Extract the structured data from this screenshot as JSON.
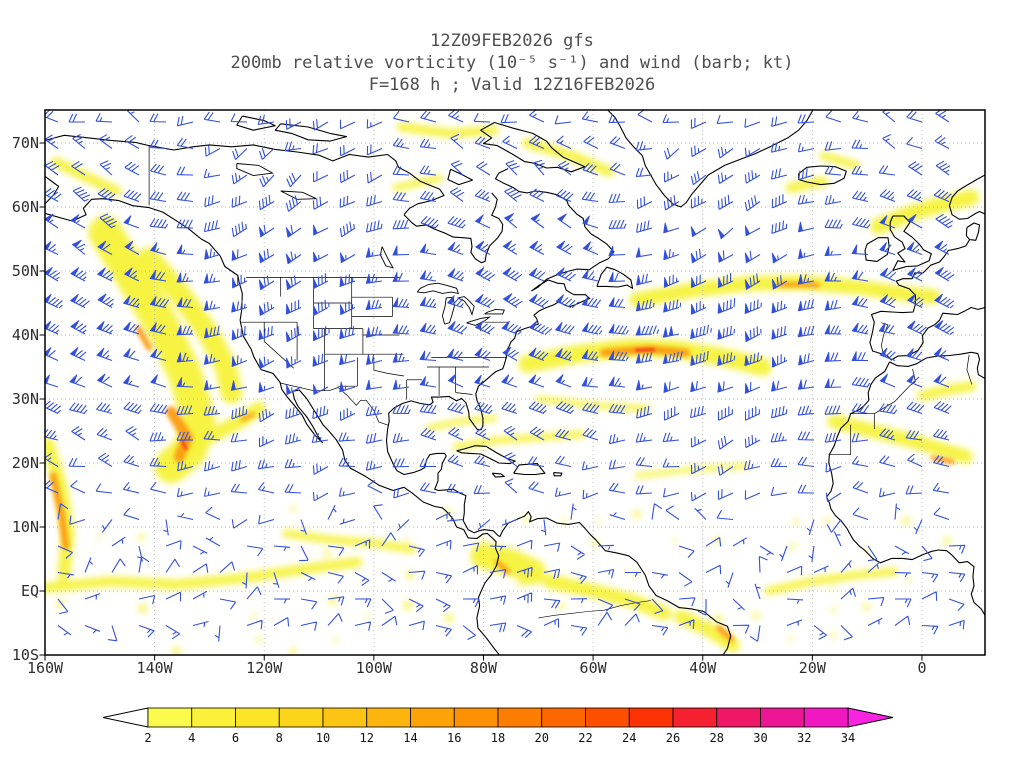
{
  "title": {
    "line1": "12Z09FEB2026 gfs",
    "line2": "200mb relative vorticity (10⁻⁵ s⁻¹) and wind (barb; kt)",
    "line3": "F=168 h ; Valid 12Z16FEB2026"
  },
  "axes": {
    "lat": [
      {
        "label": "70N",
        "value": 70
      },
      {
        "label": "60N",
        "value": 60
      },
      {
        "label": "50N",
        "value": 50
      },
      {
        "label": "40N",
        "value": 40
      },
      {
        "label": "30N",
        "value": 30
      },
      {
        "label": "20N",
        "value": 20
      },
      {
        "label": "10N",
        "value": 10
      },
      {
        "label": "EQ",
        "value": 0
      },
      {
        "label": "10S",
        "value": -10
      }
    ],
    "lon": [
      {
        "label": "160W",
        "value": -160
      },
      {
        "label": "140W",
        "value": -140
      },
      {
        "label": "120W",
        "value": -120
      },
      {
        "label": "100W",
        "value": -100
      },
      {
        "label": "80W",
        "value": -80
      },
      {
        "label": "60W",
        "value": -60
      },
      {
        "label": "40W",
        "value": -40
      },
      {
        "label": "20W",
        "value": -20
      },
      {
        "label": "0",
        "value": 0
      }
    ]
  },
  "colorbar": {
    "labels": [
      "2",
      "4",
      "6",
      "8",
      "10",
      "12",
      "14",
      "16",
      "18",
      "20",
      "22",
      "24",
      "26",
      "28",
      "30",
      "32",
      "34"
    ],
    "colors": [
      "#fbfb4d",
      "#fbf139",
      "#fce426",
      "#fcd51b",
      "#fdc513",
      "#fdb40d",
      "#fda307",
      "#fd9103",
      "#fd7d01",
      "#fd6700",
      "#fd4f00",
      "#fb3304",
      "#f52030",
      "#ef1866",
      "#ec1694",
      "#f118c1"
    ],
    "under": "#ffffff",
    "over": "#fa24e0"
  },
  "chart_data": {
    "type": "heatmap",
    "model": "gfs",
    "init_time": "12Z09FEB2026",
    "forecast_hour": "F=168 h",
    "valid_time": "12Z16FEB2026",
    "level": "200mb",
    "field": "relative vorticity",
    "field_units": "10⁻⁵ s⁻¹",
    "overlay": "wind (barb; kt)",
    "lon_axis": {
      "min": -160,
      "max": 11.5,
      "tick_interval_deg": 20
    },
    "lat_axis": {
      "min": -10,
      "max": 75,
      "tick_interval_deg": 10
    },
    "shading_levels": [
      2,
      4,
      6,
      8,
      10,
      12,
      14,
      16,
      18,
      20,
      22,
      24,
      26,
      28,
      30,
      32,
      34
    ],
    "palette": {
      "y": "#f5f23a",
      "o": "#fb9b12",
      "r": "#f8401a"
    },
    "barb_color": "#3350dd",
    "grid_color": "#b9b9b9",
    "vorticity_regions": [
      {
        "tier": "y",
        "w": 34,
        "pts": [
          [
            -149,
            56
          ],
          [
            -144,
            49
          ],
          [
            -139,
            42
          ],
          [
            -134.5,
            34
          ],
          [
            -132,
            27
          ],
          [
            -133.5,
            22
          ],
          [
            -137,
            19.5
          ]
        ]
      },
      {
        "tier": "y",
        "w": 22,
        "pts": [
          [
            -141,
            52
          ],
          [
            -135,
            46
          ],
          [
            -130,
            40
          ],
          [
            -127,
            35
          ],
          [
            -126,
            31
          ]
        ]
      },
      {
        "tier": "y",
        "w": 14,
        "pts": [
          [
            -134,
            22.5
          ],
          [
            -129,
            24.5
          ],
          [
            -124.5,
            26.5
          ],
          [
            -121,
            28.5
          ]
        ]
      },
      {
        "tier": "y",
        "w": 10,
        "pts": [
          [
            -158,
            67
          ],
          [
            -152,
            64.5
          ],
          [
            -147,
            62.5
          ]
        ]
      },
      {
        "tier": "y",
        "w": 13,
        "pts": [
          [
            -159.5,
            23
          ],
          [
            -157,
            16
          ],
          [
            -155.8,
            9
          ],
          [
            -156.5,
            3
          ]
        ]
      },
      {
        "tier": "y",
        "w": 10,
        "pts": [
          [
            -160,
            0.5
          ],
          [
            -148,
            1.5
          ],
          [
            -136,
            1
          ],
          [
            -124,
            2
          ],
          [
            -112,
            3.5
          ],
          [
            -103,
            4.5
          ]
        ]
      },
      {
        "tier": "y",
        "w": 8,
        "pts": [
          [
            -116,
            9
          ],
          [
            -108,
            8
          ],
          [
            -100,
            7.5
          ],
          [
            -93,
            6.5
          ]
        ]
      },
      {
        "tier": "y",
        "w": 26,
        "pts": [
          [
            -80,
            5.5
          ],
          [
            -75,
            4.5
          ],
          [
            -71,
            3
          ]
        ]
      },
      {
        "tier": "y",
        "w": 14,
        "pts": [
          [
            -68,
            1.5
          ],
          [
            -60,
            0
          ],
          [
            -53,
            -1.5
          ],
          [
            -47,
            -3.5
          ]
        ]
      },
      {
        "tier": "y",
        "w": 14,
        "pts": [
          [
            -44,
            -4
          ],
          [
            -39,
            -6
          ],
          [
            -34.5,
            -8.5
          ]
        ]
      },
      {
        "tier": "y",
        "w": 7,
        "pts": [
          [
            -85,
            22.5
          ],
          [
            -78,
            23.5
          ],
          [
            -70,
            24
          ],
          [
            -62,
            24.5
          ]
        ]
      },
      {
        "tier": "y",
        "w": 18,
        "pts": [
          [
            -72,
            35.5
          ],
          [
            -63,
            37
          ],
          [
            -54,
            38
          ],
          [
            -45,
            37.8
          ],
          [
            -36,
            36.5
          ],
          [
            -29,
            35
          ]
        ]
      },
      {
        "tier": "y",
        "w": 6,
        "pts": [
          [
            -70,
            30
          ],
          [
            -60,
            29
          ],
          [
            -50,
            28.5
          ]
        ]
      },
      {
        "tier": "y",
        "w": 15,
        "pts": [
          [
            -52,
            45.5
          ],
          [
            -42,
            47
          ],
          [
            -32,
            48
          ],
          [
            -22,
            48.2
          ],
          [
            -12,
            47.5
          ],
          [
            -4,
            46.5
          ],
          [
            2,
            46
          ]
        ]
      },
      {
        "tier": "y",
        "w": 16,
        "pts": [
          [
            -8,
            57
          ],
          [
            -2,
            59
          ],
          [
            4,
            60.5
          ],
          [
            9,
            61.5
          ]
        ]
      },
      {
        "tier": "y",
        "w": 10,
        "pts": [
          [
            -24,
            63
          ],
          [
            -18,
            64
          ]
        ]
      },
      {
        "tier": "y",
        "w": 8,
        "pts": [
          [
            -18,
            68
          ],
          [
            -12,
            66.5
          ]
        ]
      },
      {
        "tier": "y",
        "w": 10,
        "pts": [
          [
            -72,
            70
          ],
          [
            -64,
            68
          ],
          [
            -57,
            65.5
          ]
        ]
      },
      {
        "tier": "y",
        "w": 9,
        "pts": [
          [
            -95,
            72.5
          ],
          [
            -86,
            71.5
          ],
          [
            -78,
            72
          ]
        ]
      },
      {
        "tier": "y",
        "w": 7,
        "pts": [
          [
            -96,
            63
          ],
          [
            -88,
            64.5
          ]
        ]
      },
      {
        "tier": "y",
        "w": 14,
        "pts": [
          [
            -16,
            26.5
          ],
          [
            -9,
            25
          ],
          [
            -2,
            23.5
          ],
          [
            4,
            22
          ],
          [
            8,
            21
          ]
        ]
      },
      {
        "tier": "y",
        "w": 10,
        "pts": [
          [
            0,
            30.5
          ],
          [
            5,
            31.5
          ],
          [
            9,
            32
          ]
        ]
      },
      {
        "tier": "y",
        "w": 5,
        "pts": [
          [
            -52,
            18
          ],
          [
            -42,
            19
          ],
          [
            -32,
            19.5
          ]
        ]
      },
      {
        "tier": "y",
        "w": 8,
        "pts": [
          [
            -28,
            0
          ],
          [
            -20,
            1.5
          ],
          [
            -12,
            2.5
          ],
          [
            -5,
            3
          ]
        ]
      },
      {
        "tier": "y",
        "w": 6,
        "pts": [
          [
            -90,
            25.5
          ],
          [
            -84,
            26.5
          ],
          [
            -78,
            27
          ]
        ]
      },
      {
        "tier": "o",
        "w": 11,
        "pts": [
          [
            -137,
            28
          ],
          [
            -134,
            24
          ],
          [
            -135.5,
            21
          ]
        ]
      },
      {
        "tier": "o",
        "w": 6,
        "pts": [
          [
            -143,
            41
          ],
          [
            -141,
            38
          ]
        ]
      },
      {
        "tier": "o",
        "w": 7,
        "pts": [
          [
            -158.5,
            18
          ],
          [
            -157,
            12
          ],
          [
            -156.2,
            7
          ]
        ]
      },
      {
        "tier": "o",
        "w": 8,
        "pts": [
          [
            -58,
            37.2
          ],
          [
            -50,
            37.8
          ],
          [
            -43,
            37.2
          ]
        ]
      },
      {
        "tier": "o",
        "w": 5,
        "pts": [
          [
            -26,
            47.9
          ],
          [
            -19,
            47.8
          ]
        ]
      },
      {
        "tier": "o",
        "w": 5,
        "pts": [
          [
            2,
            20.8
          ],
          [
            5.5,
            20.2
          ]
        ]
      },
      {
        "tier": "o",
        "w": 6,
        "pts": [
          [
            -37,
            -5.8
          ],
          [
            -34.8,
            -7.5
          ]
        ]
      },
      {
        "tier": "o",
        "w": 5,
        "pts": [
          [
            -77.5,
            4.5
          ],
          [
            -75.5,
            3
          ]
        ]
      },
      {
        "tier": "o",
        "w": 4,
        "pts": [
          [
            -124,
            26.8
          ],
          [
            -122,
            27.6
          ]
        ]
      },
      {
        "tier": "r",
        "w": 3.5,
        "pts": [
          [
            -52,
            37.6
          ],
          [
            -49,
            37.7
          ]
        ]
      },
      {
        "tier": "r",
        "w": 3,
        "pts": [
          [
            -135,
            23.5
          ],
          [
            -134.3,
            22.3
          ]
        ]
      }
    ]
  }
}
